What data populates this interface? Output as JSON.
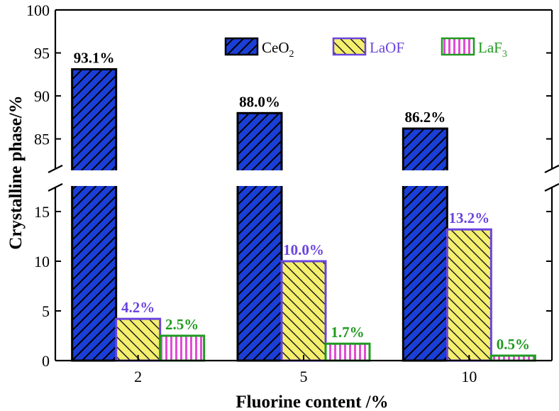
{
  "chart_data": {
    "type": "bar",
    "xlabel": "Fluorine content /%",
    "ylabel": "Crystalline phase/%",
    "categories": [
      "2",
      "5",
      "10"
    ],
    "series": [
      {
        "name": "CeO2",
        "name_main": "CeO",
        "name_sub": "2",
        "values": [
          93.1,
          88.0,
          86.2
        ],
        "labels": [
          "93.1%",
          "88.0%",
          "86.2%"
        ],
        "color": "#1a3ed8",
        "stroke": "#000000",
        "hatch": "diagonal",
        "label_color": "#000000"
      },
      {
        "name": "LaOF",
        "name_main": "LaOF",
        "name_sub": "",
        "values": [
          4.2,
          10.0,
          13.2
        ],
        "labels": [
          "4.2%",
          "10.0%",
          "13.2%"
        ],
        "color": "#f5ef6e",
        "stroke": "#6a44e0",
        "hatch": "diagonal",
        "label_color": "#6a44e0"
      },
      {
        "name": "LaF3",
        "name_main": "LaF",
        "name_sub": "3",
        "values": [
          2.5,
          1.7,
          0.5
        ],
        "labels": [
          "2.5%",
          "1.7%",
          "0.5%"
        ],
        "color": "#e34bd6",
        "stroke": "#1f9a1f",
        "hatch": "vertical",
        "label_color": "#1f9a1f"
      }
    ],
    "broken_axis": {
      "lower": {
        "range": [
          0,
          17
        ],
        "ticks": [
          0,
          5,
          10,
          15
        ]
      },
      "upper": {
        "range": [
          82,
          100
        ],
        "ticks": [
          85,
          90,
          95,
          100
        ]
      }
    },
    "legend_position": "top-right"
  }
}
